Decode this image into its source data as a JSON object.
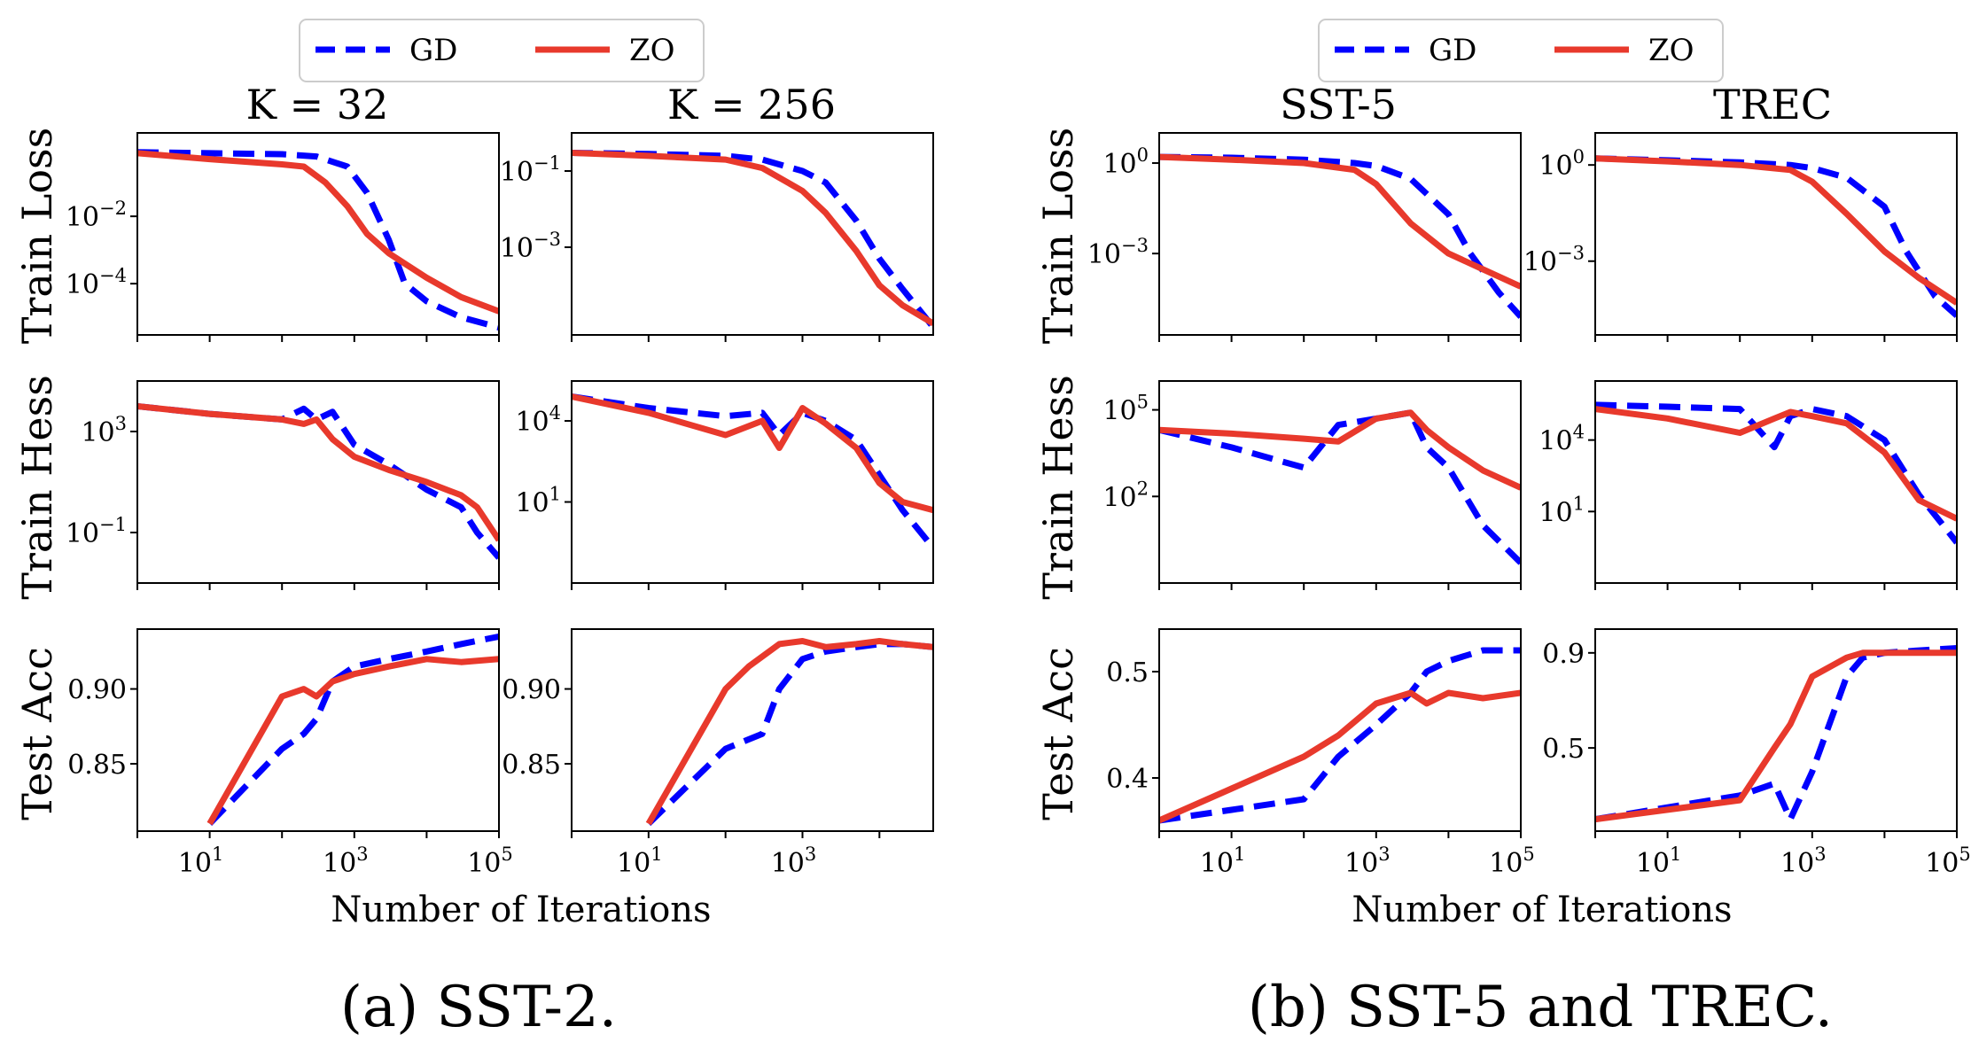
{
  "captions": [
    "(a) SST-2.",
    "(b) SST-5 and TREC."
  ],
  "legend": [
    {
      "label": "GD",
      "color": "#0000ff",
      "style": "dashed"
    },
    {
      "label": "ZO",
      "color": "#e8392c",
      "style": "solid"
    }
  ],
  "xlabel": "Number of Iterations",
  "ylabels": [
    "Train Loss",
    "Train Hess",
    "Test Acc"
  ],
  "column_titles": [
    "K = 32",
    "K = 256",
    "SST-5",
    "TREC"
  ],
  "colors": {
    "gd": "#0000ff",
    "zo": "#e8392c"
  },
  "chart_data": [
    {
      "type": "line",
      "column": "K = 32",
      "ylabel": "Train Loss",
      "xscale": "log",
      "yscale": "log",
      "xlim": [
        1,
        100000
      ],
      "ylim": [
        3e-06,
        3
      ],
      "yticks": [
        {
          "value": 0.01,
          "label": "10^-2"
        },
        {
          "value": 0.0001,
          "label": "10^-4"
        }
      ],
      "series": [
        {
          "name": "GD",
          "x": [
            1,
            10,
            100,
            300,
            800,
            1500,
            3000,
            5000,
            10000,
            30000,
            100000
          ],
          "y": [
            0.8,
            0.75,
            0.7,
            0.6,
            0.3,
            0.05,
            0.002,
            0.0001,
            3e-05,
            1e-05,
            5e-06
          ]
        },
        {
          "name": "ZO",
          "x": [
            1,
            10,
            100,
            200,
            400,
            800,
            1500,
            3000,
            10000,
            30000,
            100000
          ],
          "y": [
            0.75,
            0.5,
            0.35,
            0.3,
            0.1,
            0.02,
            0.003,
            0.0008,
            0.00015,
            4e-05,
            1.5e-05
          ]
        }
      ]
    },
    {
      "type": "line",
      "column": "K = 256",
      "ylabel": "Train Loss",
      "xscale": "log",
      "yscale": "log",
      "xlim": [
        1,
        50000
      ],
      "ylim": [
        5e-06,
        1
      ],
      "yticks": [
        {
          "value": 0.1,
          "label": "10^-1"
        },
        {
          "value": 0.001,
          "label": "10^-3"
        }
      ],
      "series": [
        {
          "name": "GD",
          "x": [
            1,
            10,
            100,
            300,
            1000,
            2000,
            5000,
            10000,
            20000,
            50000
          ],
          "y": [
            0.3,
            0.28,
            0.25,
            0.2,
            0.1,
            0.05,
            0.005,
            0.0005,
            8e-05,
            8e-06
          ]
        },
        {
          "name": "ZO",
          "x": [
            1,
            10,
            100,
            300,
            1000,
            2000,
            5000,
            10000,
            20000,
            50000
          ],
          "y": [
            0.3,
            0.25,
            0.2,
            0.12,
            0.03,
            0.008,
            0.0008,
            0.0001,
            3e-05,
            1e-05
          ]
        }
      ]
    },
    {
      "type": "line",
      "column": "SST-5",
      "ylabel": "Train Loss",
      "xscale": "log",
      "yscale": "log",
      "xlim": [
        1,
        100000
      ],
      "ylim": [
        2e-06,
        10
      ],
      "yticks": [
        {
          "value": 1,
          "label": "10^0"
        },
        {
          "value": 0.001,
          "label": "10^-3"
        }
      ],
      "series": [
        {
          "name": "GD",
          "x": [
            1,
            10,
            100,
            500,
            1000,
            3000,
            10000,
            20000,
            50000,
            100000
          ],
          "y": [
            1.6,
            1.5,
            1.3,
            1.0,
            0.8,
            0.3,
            0.02,
            0.001,
            5e-05,
            8e-06
          ]
        },
        {
          "name": "ZO",
          "x": [
            1,
            10,
            100,
            500,
            1000,
            3000,
            10000,
            30000,
            100000
          ],
          "y": [
            1.6,
            1.3,
            1.0,
            0.6,
            0.2,
            0.01,
            0.001,
            0.0003,
            8e-05
          ]
        }
      ]
    },
    {
      "type": "line",
      "column": "TREC",
      "ylabel": "Train Loss",
      "xscale": "log",
      "yscale": "log",
      "xlim": [
        1,
        100000
      ],
      "ylim": [
        5e-06,
        10
      ],
      "yticks": [
        {
          "value": 1,
          "label": "10^0"
        },
        {
          "value": 0.001,
          "label": "10^-3"
        }
      ],
      "series": [
        {
          "name": "GD",
          "x": [
            1,
            10,
            100,
            500,
            1000,
            3000,
            10000,
            20000,
            50000,
            100000
          ],
          "y": [
            1.6,
            1.4,
            1.2,
            1.0,
            0.8,
            0.4,
            0.05,
            0.002,
            8e-05,
            2e-05
          ]
        },
        {
          "name": "ZO",
          "x": [
            1,
            10,
            100,
            500,
            1000,
            3000,
            10000,
            30000,
            100000
          ],
          "y": [
            1.6,
            1.3,
            1.0,
            0.7,
            0.3,
            0.03,
            0.002,
            0.0003,
            5e-05
          ]
        }
      ]
    },
    {
      "type": "line",
      "column": "K = 32",
      "ylabel": "Train Hess",
      "xscale": "log",
      "yscale": "log",
      "xlim": [
        1,
        100000
      ],
      "ylim": [
        0.001,
        100000
      ],
      "yticks": [
        {
          "value": 1000,
          "label": "10^3"
        },
        {
          "value": 0.1,
          "label": "10^-1"
        }
      ],
      "series": [
        {
          "name": "GD",
          "x": [
            1,
            10,
            100,
            200,
            300,
            500,
            1000,
            3000,
            10000,
            30000,
            50000,
            100000
          ],
          "y": [
            10000,
            5000,
            3000,
            8000,
            3000,
            6000,
            300,
            50,
            5,
            1,
            0.1,
            0.01
          ]
        },
        {
          "name": "ZO",
          "x": [
            1,
            10,
            100,
            200,
            300,
            500,
            1000,
            3000,
            10000,
            30000,
            50000,
            100000
          ],
          "y": [
            10000,
            5000,
            3000,
            2000,
            3000,
            500,
            100,
            30,
            10,
            3,
            1,
            0.05
          ]
        }
      ]
    },
    {
      "type": "line",
      "column": "K = 256",
      "ylabel": "Train Hess",
      "xscale": "log",
      "yscale": "log",
      "xlim": [
        1,
        50000
      ],
      "ylim": [
        0.01,
        300000
      ],
      "yticks": [
        {
          "value": 10000,
          "label": "10^4"
        },
        {
          "value": 10,
          "label": "10^1"
        }
      ],
      "series": [
        {
          "name": "GD",
          "x": [
            1,
            10,
            100,
            300,
            500,
            1000,
            2000,
            5000,
            10000,
            20000,
            50000
          ],
          "y": [
            80000,
            30000,
            15000,
            20000,
            3000,
            20000,
            10000,
            2000,
            100,
            5,
            0.2
          ]
        },
        {
          "name": "ZO",
          "x": [
            1,
            10,
            100,
            300,
            500,
            1000,
            2000,
            5000,
            10000,
            20000,
            50000
          ],
          "y": [
            80000,
            20000,
            3000,
            10000,
            1000,
            30000,
            8000,
            1000,
            50,
            10,
            5
          ]
        }
      ]
    },
    {
      "type": "line",
      "column": "SST-5",
      "ylabel": "Train Hess",
      "xscale": "log",
      "yscale": "log",
      "xlim": [
        1,
        100000
      ],
      "ylim": [
        0.1,
        1000000
      ],
      "yticks": [
        {
          "value": 100000,
          "label": "10^5"
        },
        {
          "value": 100,
          "label": "10^2"
        }
      ],
      "series": [
        {
          "name": "GD",
          "x": [
            1,
            10,
            100,
            300,
            1000,
            3000,
            5000,
            10000,
            30000,
            100000
          ],
          "y": [
            20000,
            5000,
            1000,
            30000,
            50000,
            80000,
            5000,
            1000,
            10,
            0.5
          ]
        },
        {
          "name": "ZO",
          "x": [
            1,
            10,
            100,
            300,
            1000,
            3000,
            5000,
            10000,
            30000,
            100000
          ],
          "y": [
            20000,
            15000,
            10000,
            8000,
            50000,
            80000,
            20000,
            5000,
            800,
            200
          ]
        }
      ]
    },
    {
      "type": "line",
      "column": "TREC",
      "ylabel": "Train Hess",
      "xscale": "log",
      "yscale": "log",
      "xlim": [
        1,
        100000
      ],
      "ylim": [
        0.01,
        3000000
      ],
      "yticks": [
        {
          "value": 10000,
          "label": "10^4"
        },
        {
          "value": 10,
          "label": "10^1"
        }
      ],
      "series": [
        {
          "name": "GD",
          "x": [
            1,
            10,
            100,
            300,
            500,
            1000,
            3000,
            10000,
            30000,
            100000
          ],
          "y": [
            300000,
            250000,
            200000,
            5000,
            100000,
            200000,
            100000,
            10000,
            50,
            0.5
          ]
        },
        {
          "name": "ZO",
          "x": [
            1,
            10,
            100,
            300,
            500,
            1000,
            3000,
            10000,
            30000,
            100000
          ],
          "y": [
            200000,
            80000,
            20000,
            80000,
            150000,
            100000,
            50000,
            3000,
            30,
            5
          ]
        }
      ]
    },
    {
      "type": "line",
      "column": "K = 32",
      "ylabel": "Test Acc",
      "xscale": "log",
      "yscale": "linear",
      "xlim": [
        1,
        100000
      ],
      "ylim": [
        0.805,
        0.94
      ],
      "yticks": [
        {
          "value": 0.85,
          "label": "0.85"
        },
        {
          "value": 0.9,
          "label": "0.90"
        }
      ],
      "series": [
        {
          "name": "GD",
          "x": [
            10,
            100,
            200,
            300,
            500,
            1000,
            3000,
            10000,
            30000,
            100000
          ],
          "y": [
            0.81,
            0.86,
            0.87,
            0.88,
            0.905,
            0.915,
            0.92,
            0.925,
            0.93,
            0.935
          ]
        },
        {
          "name": "ZO",
          "x": [
            10,
            100,
            200,
            300,
            500,
            1000,
            3000,
            10000,
            30000,
            100000
          ],
          "y": [
            0.81,
            0.895,
            0.9,
            0.895,
            0.905,
            0.91,
            0.915,
            0.92,
            0.918,
            0.92
          ]
        }
      ]
    },
    {
      "type": "line",
      "column": "K = 256",
      "ylabel": "Test Acc",
      "xscale": "log",
      "yscale": "linear",
      "xlim": [
        1,
        50000
      ],
      "ylim": [
        0.805,
        0.94
      ],
      "yticks": [
        {
          "value": 0.85,
          "label": "0.85"
        },
        {
          "value": 0.9,
          "label": "0.90"
        }
      ],
      "series": [
        {
          "name": "GD",
          "x": [
            10,
            100,
            300,
            500,
            1000,
            2000,
            5000,
            10000,
            20000,
            50000
          ],
          "y": [
            0.81,
            0.86,
            0.87,
            0.9,
            0.92,
            0.925,
            0.928,
            0.93,
            0.93,
            0.928
          ]
        },
        {
          "name": "ZO",
          "x": [
            10,
            100,
            200,
            500,
            1000,
            2000,
            5000,
            10000,
            20000,
            50000
          ],
          "y": [
            0.81,
            0.9,
            0.915,
            0.93,
            0.932,
            0.928,
            0.93,
            0.932,
            0.93,
            0.928
          ]
        }
      ]
    },
    {
      "type": "line",
      "column": "SST-5",
      "ylabel": "Test Acc",
      "xscale": "log",
      "yscale": "linear",
      "xlim": [
        1,
        100000
      ],
      "ylim": [
        0.35,
        0.54
      ],
      "yticks": [
        {
          "value": 0.4,
          "label": "0.4"
        },
        {
          "value": 0.5,
          "label": "0.5"
        }
      ],
      "series": [
        {
          "name": "GD",
          "x": [
            1,
            10,
            100,
            300,
            1000,
            3000,
            5000,
            10000,
            30000,
            100000
          ],
          "y": [
            0.36,
            0.37,
            0.38,
            0.42,
            0.45,
            0.48,
            0.5,
            0.51,
            0.52,
            0.52
          ]
        },
        {
          "name": "ZO",
          "x": [
            1,
            10,
            100,
            300,
            1000,
            3000,
            5000,
            10000,
            30000,
            100000
          ],
          "y": [
            0.36,
            0.39,
            0.42,
            0.44,
            0.47,
            0.48,
            0.47,
            0.48,
            0.475,
            0.48
          ]
        }
      ]
    },
    {
      "type": "line",
      "column": "TREC",
      "ylabel": "Test Acc",
      "xscale": "log",
      "yscale": "linear",
      "xlim": [
        1,
        100000
      ],
      "ylim": [
        0.15,
        1.0
      ],
      "yticks": [
        {
          "value": 0.5,
          "label": "0.5"
        },
        {
          "value": 0.9,
          "label": "0.9"
        }
      ],
      "series": [
        {
          "name": "GD",
          "x": [
            1,
            10,
            100,
            300,
            500,
            1000,
            3000,
            5000,
            10000,
            30000,
            100000
          ],
          "y": [
            0.2,
            0.25,
            0.3,
            0.35,
            0.2,
            0.4,
            0.8,
            0.88,
            0.9,
            0.91,
            0.92
          ]
        },
        {
          "name": "ZO",
          "x": [
            1,
            10,
            100,
            300,
            500,
            1000,
            3000,
            5000,
            10000,
            30000,
            100000
          ],
          "y": [
            0.2,
            0.24,
            0.28,
            0.5,
            0.6,
            0.8,
            0.88,
            0.9,
            0.9,
            0.9,
            0.9
          ]
        }
      ]
    }
  ]
}
